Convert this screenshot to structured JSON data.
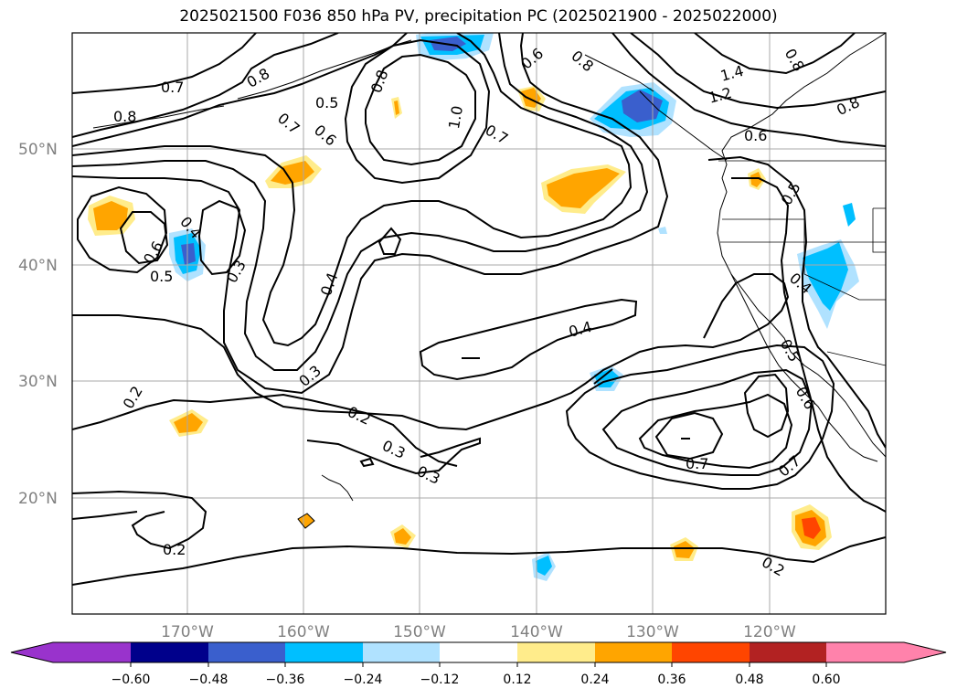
{
  "title": "2025021500 F036 850 hPa PV, precipitation PC (2025021900 - 2025022000)",
  "lat_labels": [
    "50°N",
    "40°N",
    "30°N",
    "20°N"
  ],
  "lon_labels": [
    "170°W",
    "160°W",
    "150°W",
    "140°W",
    "130°W",
    "120°W"
  ],
  "contour_labels": [
    "0.7",
    "0.8",
    "0.8",
    "0.5",
    "0.6",
    "0.7",
    "1.0",
    "0.6",
    "0.7",
    "0.8",
    "1.4",
    "1.2",
    "0.8",
    "0.6",
    "0.5",
    "0.4",
    "0.6",
    "0.5",
    "0.3",
    "0.4",
    "0.3",
    "0.4",
    "0.2",
    "0.2",
    "0.3",
    "0.3",
    "0.7",
    "0.7",
    "0.4",
    "0.5",
    "0.6",
    "0.2",
    "0.2",
    "0.8",
    "0.8"
  ],
  "colorbar": {
    "ticks": [
      "−0.60",
      "−0.48",
      "−0.36",
      "−0.24",
      "−0.12",
      "0.12",
      "0.24",
      "0.36",
      "0.48",
      "0.60"
    ],
    "colors": [
      "#9933cc",
      "#00008b",
      "#3a5fcd",
      "#00bfff",
      "#b0e2ff",
      "#ffffff",
      "#ffec8b",
      "#ffa500",
      "#ff4500",
      "#b22222",
      "#ff82ab"
    ]
  },
  "fill_colors": {
    "light_blue": "#b0e2ff",
    "cyan": "#00bfff",
    "blue": "#3a5fcd",
    "light_yellow": "#ffec8b",
    "orange": "#ffa500",
    "red_orange": "#ff4500"
  }
}
